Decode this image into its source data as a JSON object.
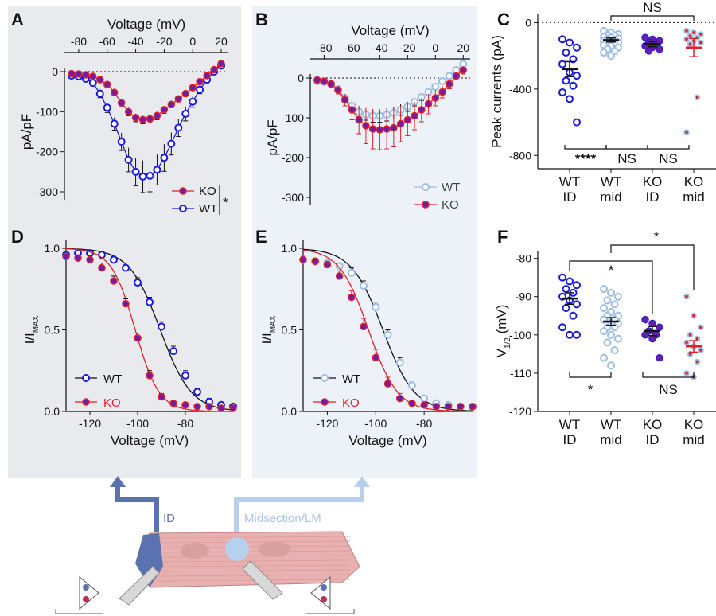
{
  "colors": {
    "wt_dark": "#1a1adc",
    "ko_fill": "#6b1fa8",
    "ko_line": "#e0202a",
    "wt_light": "#9bbde6",
    "panel_bg_left": "#e9eaee",
    "panel_bg_mid": "#edf2f8",
    "cell_fill": "#e8b0b0"
  },
  "chart_data": [
    {
      "panel": "A",
      "type": "line",
      "xlabel": "Voltage (mV)",
      "ylabel": "pA/pF",
      "xlim": [
        -90,
        25
      ],
      "ylim": [
        -340,
        20
      ],
      "xticks": [
        "-80",
        "-60",
        "-40",
        "-20",
        "0",
        "20"
      ],
      "yticks": [
        "0",
        "-100",
        "-200",
        "-300"
      ],
      "legend": [
        "KO",
        "WT"
      ],
      "significance": "*",
      "x": [
        -85,
        -80,
        -75,
        -70,
        -65,
        -60,
        -55,
        -50,
        -45,
        -40,
        -35,
        -30,
        -25,
        -20,
        -15,
        -10,
        -5,
        0,
        5,
        10,
        15,
        20
      ],
      "series": [
        {
          "name": "WT",
          "values": [
            -10,
            -12,
            -18,
            -28,
            -55,
            -90,
            -130,
            -175,
            -220,
            -250,
            -262,
            -260,
            -245,
            -215,
            -180,
            -140,
            -105,
            -75,
            -45,
            -20,
            0,
            15
          ],
          "err": [
            5,
            5,
            6,
            8,
            10,
            12,
            16,
            22,
            30,
            35,
            40,
            40,
            38,
            34,
            28,
            22,
            18,
            14,
            10,
            8,
            6,
            5
          ]
        },
        {
          "name": "KO",
          "values": [
            -5,
            -6,
            -8,
            -12,
            -20,
            -32,
            -52,
            -78,
            -100,
            -115,
            -120,
            -118,
            -110,
            -95,
            -82,
            -68,
            -55,
            -40,
            -25,
            -10,
            5,
            20
          ],
          "err": [
            3,
            3,
            3,
            4,
            5,
            6,
            8,
            10,
            10,
            10,
            10,
            10,
            10,
            9,
            8,
            7,
            6,
            5,
            5,
            4,
            4,
            4
          ]
        }
      ]
    },
    {
      "panel": "B",
      "type": "line",
      "xlabel": "Voltage (mV)",
      "ylabel": "pA/pF",
      "xlim": [
        -90,
        25
      ],
      "ylim": [
        -340,
        20
      ],
      "xticks": [
        "-80",
        "-60",
        "-40",
        "-20",
        "0",
        "20"
      ],
      "yticks": [
        "0",
        "-100",
        "-200",
        "-300"
      ],
      "legend": [
        "WT",
        "KO"
      ],
      "x": [
        -85,
        -80,
        -75,
        -70,
        -65,
        -60,
        -55,
        -50,
        -45,
        -40,
        -35,
        -30,
        -25,
        -20,
        -15,
        -10,
        -5,
        0,
        5,
        10,
        15,
        20
      ],
      "series": [
        {
          "name": "WT",
          "values": [
            -8,
            -10,
            -15,
            -28,
            -50,
            -70,
            -85,
            -92,
            -95,
            -95,
            -92,
            -88,
            -80,
            -72,
            -60,
            -48,
            -35,
            -22,
            -8,
            5,
            20,
            35
          ],
          "err": [
            3,
            3,
            4,
            6,
            8,
            10,
            12,
            14,
            16,
            16,
            16,
            15,
            14,
            12,
            10,
            9,
            8,
            7,
            6,
            5,
            5,
            5
          ]
        },
        {
          "name": "KO",
          "values": [
            -5,
            -8,
            -15,
            -30,
            -55,
            -80,
            -105,
            -120,
            -128,
            -130,
            -128,
            -125,
            -115,
            -105,
            -95,
            -80,
            -65,
            -50,
            -35,
            -15,
            5,
            20
          ],
          "err": [
            3,
            4,
            6,
            10,
            15,
            25,
            35,
            45,
            50,
            50,
            50,
            48,
            45,
            40,
            35,
            30,
            25,
            20,
            15,
            12,
            10,
            10
          ]
        }
      ]
    },
    {
      "panel": "C",
      "type": "scatter",
      "ylabel": "Peak currents (pA)",
      "ylim": [
        -880,
        50
      ],
      "yticks": [
        "0",
        "-400",
        "-800"
      ],
      "categories": [
        "WT\nID",
        "WT\nmid",
        "KO\nID",
        "KO\nmid"
      ],
      "groups": [
        {
          "name": "WT ID",
          "mean": -280,
          "sem": 45,
          "points": [
            -100,
            -120,
            -150,
            -180,
            -220,
            -250,
            -300,
            -320,
            -350,
            -380,
            -420,
            -460,
            -600
          ]
        },
        {
          "name": "WT mid",
          "mean": -105,
          "sem": 12,
          "points": [
            -50,
            -60,
            -70,
            -75,
            -80,
            -85,
            -90,
            -95,
            -100,
            -105,
            -110,
            -115,
            -120,
            -125,
            -130,
            -135,
            -140,
            -150,
            -160,
            -170,
            -180,
            -200
          ]
        },
        {
          "name": "KO ID",
          "mean": -130,
          "sem": 15,
          "points": [
            -90,
            -100,
            -110,
            -120,
            -130,
            -140,
            -150,
            -160,
            -170
          ]
        },
        {
          "name": "KO mid",
          "mean": -150,
          "sem": 55,
          "points": [
            -50,
            -60,
            -70,
            -80,
            -90,
            -100,
            -110,
            -120,
            -130,
            -450,
            -660
          ]
        }
      ],
      "significance": [
        {
          "pair": [
            "WT ID",
            "WT mid"
          ],
          "label": "****"
        },
        {
          "pair": [
            "WT mid",
            "KO ID"
          ],
          "label": "NS"
        },
        {
          "pair": [
            "KO ID",
            "KO mid"
          ],
          "label": "NS"
        },
        {
          "pair": [
            "WT mid",
            "KO mid"
          ],
          "label": "NS"
        }
      ]
    },
    {
      "panel": "D",
      "type": "line",
      "xlabel": "Voltage (mV)",
      "ylabel": "I/I",
      "ylabel_sub": "MAX",
      "xlim": [
        -130,
        -60
      ],
      "ylim": [
        0,
        1.05
      ],
      "xticks": [
        "-120",
        "-100",
        "-80"
      ],
      "yticks": [
        "0.0",
        "0.5",
        "1.0"
      ],
      "legend": [
        "WT",
        "KO"
      ],
      "x": [
        -130,
        -125,
        -120,
        -115,
        -110,
        -105,
        -100,
        -95,
        -90,
        -85,
        -80,
        -75,
        -70,
        -65,
        -60
      ],
      "series": [
        {
          "name": "WT",
          "values": [
            0.96,
            0.97,
            0.97,
            0.96,
            0.93,
            0.88,
            0.79,
            0.67,
            0.52,
            0.37,
            0.22,
            0.12,
            0.06,
            0.04,
            0.03
          ],
          "err": [
            0.02,
            0.02,
            0.02,
            0.02,
            0.02,
            0.03,
            0.03,
            0.03,
            0.03,
            0.03,
            0.03,
            0.02,
            0.02,
            0.01,
            0.01
          ],
          "v_half": -90.5,
          "k": 6.5
        },
        {
          "name": "KO",
          "values": [
            0.95,
            0.94,
            0.93,
            0.88,
            0.8,
            0.66,
            0.45,
            0.22,
            0.09,
            0.05,
            0.04,
            0.03,
            0.03,
            0.02,
            0.02
          ],
          "err": [
            0.02,
            0.02,
            0.02,
            0.03,
            0.03,
            0.03,
            0.03,
            0.03,
            0.02,
            0.01,
            0.01,
            0.01,
            0.01,
            0.01,
            0.01
          ],
          "v_half": -101,
          "k": 5
        }
      ]
    },
    {
      "panel": "E",
      "type": "line",
      "xlabel": "Voltage (mV)",
      "ylabel": "I/I",
      "ylabel_sub": "MAX",
      "xlim": [
        -130,
        -60
      ],
      "ylim": [
        0,
        1.05
      ],
      "xticks": [
        "-120",
        "-100",
        "-80"
      ],
      "yticks": [
        "0.0",
        "0.5",
        "1.0"
      ],
      "legend": [
        "WT",
        "KO"
      ],
      "x": [
        -130,
        -125,
        -120,
        -115,
        -110,
        -105,
        -100,
        -95,
        -90,
        -85,
        -80,
        -75,
        -70,
        -65,
        -60
      ],
      "series": [
        {
          "name": "WT",
          "values": [
            0.93,
            0.92,
            0.91,
            0.89,
            0.85,
            0.77,
            0.64,
            0.47,
            0.3,
            0.16,
            0.08,
            0.05,
            0.04,
            0.03,
            0.03
          ],
          "err": [
            0.02,
            0.02,
            0.02,
            0.02,
            0.03,
            0.03,
            0.03,
            0.03,
            0.03,
            0.02,
            0.02,
            0.01,
            0.01,
            0.01,
            0.01
          ],
          "v_half": -97,
          "k": 6.5
        },
        {
          "name": "KO",
          "values": [
            0.93,
            0.92,
            0.9,
            0.83,
            0.7,
            0.52,
            0.33,
            0.17,
            0.08,
            0.05,
            0.04,
            0.03,
            0.03,
            0.03,
            0.03
          ],
          "err": [
            0.02,
            0.02,
            0.02,
            0.03,
            0.04,
            0.05,
            0.05,
            0.04,
            0.03,
            0.02,
            0.01,
            0.01,
            0.01,
            0.01,
            0.01
          ],
          "v_half": -103,
          "k": 6
        }
      ]
    },
    {
      "panel": "F",
      "type": "scatter",
      "ylabel": "V",
      "ylabel_sub": "1/2",
      "ylabel_unit": " (mV)",
      "ylim": [
        -120,
        -78
      ],
      "yticks": [
        "-80",
        "-90",
        "-100",
        "-110",
        "-120"
      ],
      "categories": [
        "WT\nID",
        "WT\nmid",
        "KO\nID",
        "KO\nmid"
      ],
      "groups": [
        {
          "name": "WT ID",
          "mean": -90.5,
          "sem": 1.5,
          "points": [
            -85,
            -86,
            -87,
            -88,
            -89,
            -90,
            -91,
            -92,
            -93,
            -95,
            -98,
            -100,
            -100
          ]
        },
        {
          "name": "WT mid",
          "mean": -96.5,
          "sem": 1.0,
          "points": [
            -88,
            -89,
            -90,
            -91,
            -92,
            -93,
            -94,
            -95,
            -95,
            -96,
            -96,
            -97,
            -97,
            -98,
            -98,
            -99,
            -100,
            -101,
            -102,
            -104,
            -106,
            -108
          ]
        },
        {
          "name": "KO ID",
          "mean": -99,
          "sem": 1.2,
          "points": [
            -96,
            -97,
            -98,
            -99,
            -100,
            -100,
            -101,
            -106
          ]
        },
        {
          "name": "KO mid",
          "mean": -103,
          "sem": 1.5,
          "points": [
            -90,
            -95,
            -98,
            -100,
            -101,
            -102,
            -103,
            -104,
            -105,
            -107,
            -110,
            -111
          ]
        }
      ],
      "significance": [
        {
          "pair": [
            "WT ID",
            "WT mid"
          ],
          "label": "*"
        },
        {
          "pair": [
            "KO ID",
            "KO mid"
          ],
          "label": "NS"
        },
        {
          "pair": [
            "WT ID",
            "KO ID"
          ],
          "label": ""
        },
        {
          "pair": [
            "WT mid",
            "KO mid"
          ],
          "label": "*"
        },
        {
          "pair": [
            "WT mid"
          ],
          "label": "*"
        }
      ]
    }
  ],
  "panel_labels": [
    "A",
    "B",
    "C",
    "D",
    "E",
    "F"
  ],
  "schematic": {
    "label_id": "ID",
    "label_mid": "Midsection/LM"
  }
}
